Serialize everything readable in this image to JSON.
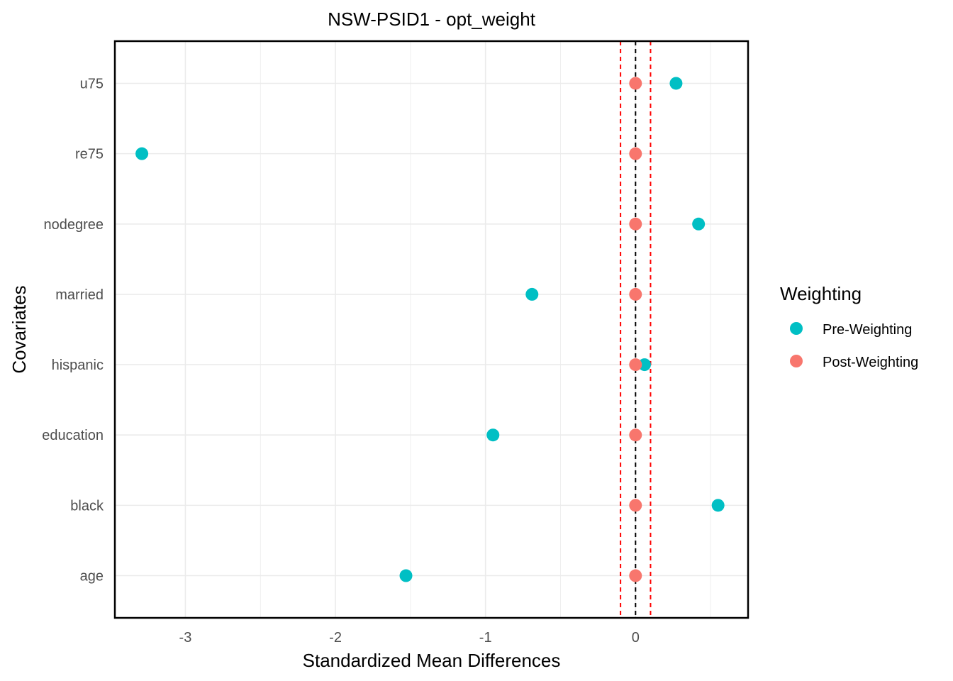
{
  "chart_data": {
    "type": "scatter",
    "title": "NSW-PSID1 - opt_weight",
    "xlabel": "Standardized Mean Differences",
    "ylabel": "Covariates",
    "xlim": [
      -3.47,
      0.75
    ],
    "x_ticks": [
      -3,
      -2,
      -1,
      0
    ],
    "categories": [
      "age",
      "black",
      "education",
      "hispanic",
      "married",
      "nodegree",
      "re75",
      "u75"
    ],
    "series": [
      {
        "name": "Pre-Weighting",
        "color": "#00BFC4",
        "values": [
          -1.53,
          0.55,
          -0.95,
          0.06,
          -0.69,
          0.42,
          -3.29,
          0.27
        ]
      },
      {
        "name": "Post-Weighting",
        "color": "#F8766D",
        "values": [
          0.0,
          0.0,
          0.0,
          0.0,
          0.0,
          0.0,
          0.0,
          0.0
        ]
      }
    ],
    "reference_lines": [
      {
        "x": 0,
        "color": "#000000",
        "style": "dashed"
      },
      {
        "x": -0.1,
        "color": "#FF0000",
        "style": "dashed"
      },
      {
        "x": 0.1,
        "color": "#FF0000",
        "style": "dashed"
      }
    ],
    "legend": {
      "title": "Weighting",
      "placement": "right"
    },
    "grid": true
  }
}
